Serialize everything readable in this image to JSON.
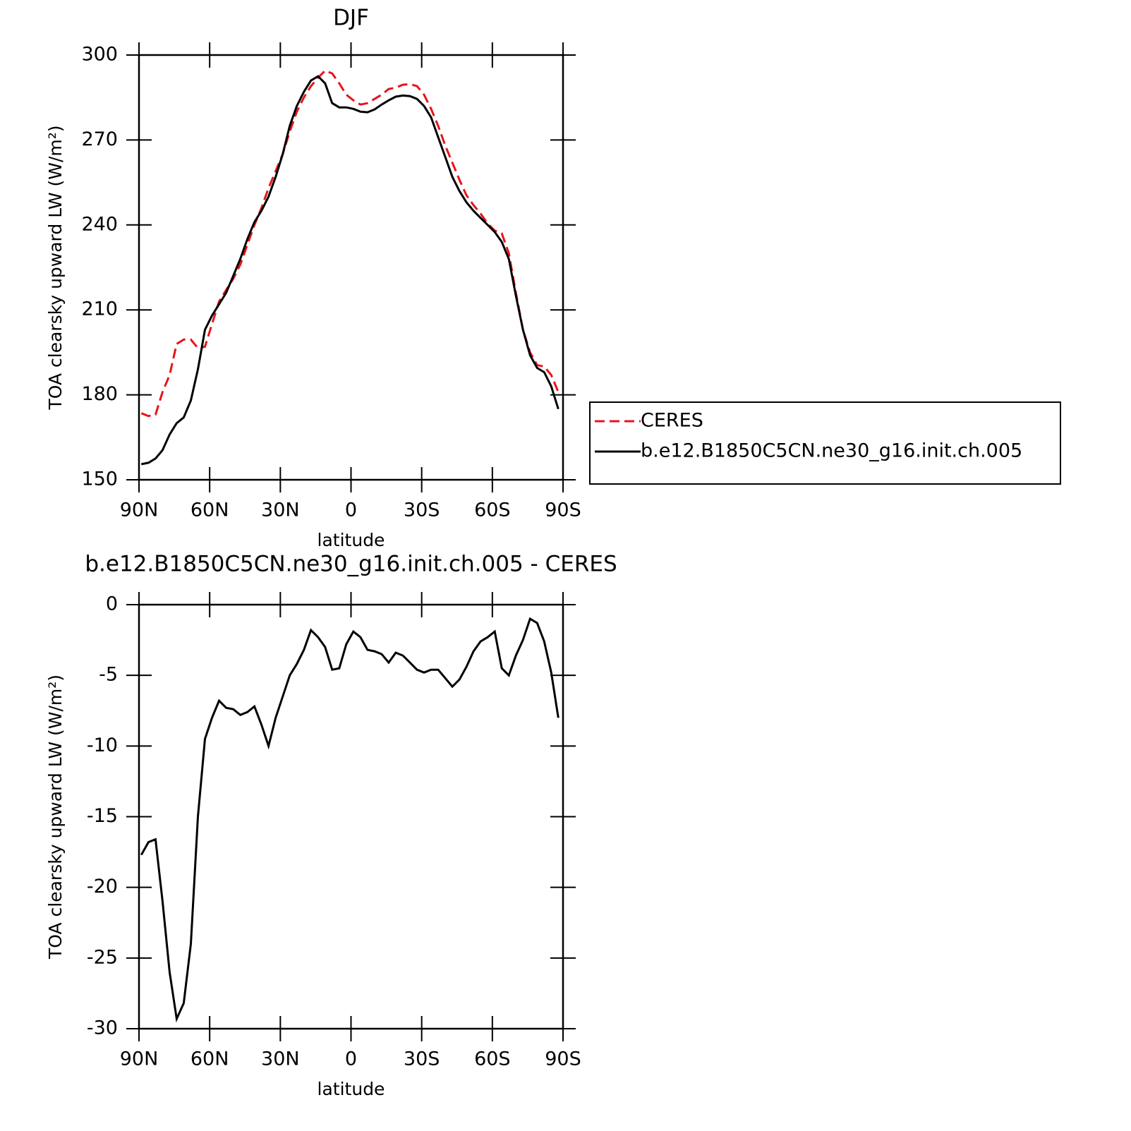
{
  "chart_data": [
    {
      "type": "line",
      "title": "DJF",
      "xlabel": "latitude",
      "ylabel": "TOA clearsky upward LW (W/m²)",
      "x": [
        89,
        86,
        83,
        80,
        77,
        74,
        71,
        68,
        65,
        62,
        59,
        56,
        53,
        50,
        47,
        44,
        41,
        38,
        35,
        32,
        29,
        26,
        23,
        20,
        17,
        14,
        11,
        8,
        5,
        2,
        -1,
        -4,
        -7,
        -10,
        -13,
        -16,
        -19,
        -22,
        -25,
        -28,
        -31,
        -34,
        -37,
        -40,
        -43,
        -46,
        -49,
        -52,
        -55,
        -58,
        -61,
        -64,
        -67,
        -70,
        -73,
        -76,
        -79,
        -82,
        -85,
        -88
      ],
      "series": [
        {
          "name": "CERES",
          "color": "#e8141c",
          "line_style": "dashed",
          "values": [
            173.5,
            172.5,
            173,
            181,
            187,
            198,
            199.5,
            199.5,
            196.5,
            197,
            205,
            213,
            217,
            221,
            226,
            233,
            240,
            246,
            253,
            259,
            265,
            273,
            280,
            285,
            289,
            292,
            294.5,
            293.5,
            290,
            286,
            284,
            282.5,
            283,
            284.5,
            286,
            288,
            288.5,
            289.5,
            289.7,
            289,
            286,
            281,
            275,
            268,
            262,
            256,
            250.5,
            247,
            244,
            240.5,
            238,
            237,
            230,
            216,
            203,
            195,
            190.5,
            190,
            187,
            181
          ]
        },
        {
          "name": "b.e12.B1850C5CN.ne30_g16.init.ch.005",
          "color": "#000000",
          "line_style": "solid",
          "values": [
            155.5,
            156,
            157.5,
            160.5,
            166,
            170,
            172,
            178,
            189,
            203,
            208,
            212,
            216,
            222,
            228,
            235,
            241,
            245,
            250,
            257,
            265,
            275,
            282,
            287,
            291,
            292.5,
            290,
            283,
            281.5,
            281.5,
            281,
            280,
            279.8,
            280.8,
            282.5,
            284,
            285.3,
            285.7,
            285.5,
            284.5,
            282,
            278,
            271,
            264,
            257,
            252,
            248,
            245,
            242.5,
            240,
            237.5,
            234,
            228,
            215,
            203,
            194,
            189.5,
            188,
            183,
            175
          ]
        }
      ],
      "xlim": [
        90,
        -90
      ],
      "xticks": [
        {
          "value": 90,
          "label": "90N"
        },
        {
          "value": 60,
          "label": "60N"
        },
        {
          "value": 30,
          "label": "30N"
        },
        0,
        {
          "value": -30,
          "label": "30S"
        },
        {
          "value": -60,
          "label": "60S"
        },
        {
          "value": -90,
          "label": "90S"
        }
      ],
      "ylim": [
        150,
        300
      ],
      "yticks": [
        150,
        180,
        210,
        240,
        270,
        300
      ],
      "legend": "right"
    },
    {
      "type": "line",
      "title": "b.e12.B1850C5CN.ne30_g16.init.ch.005 - CERES",
      "xlabel": "latitude",
      "ylabel": "TOA clearsky upward LW (W/m²)",
      "x": [
        89,
        86,
        83,
        80,
        77,
        74,
        71,
        68,
        65,
        62,
        59,
        56,
        53,
        50,
        47,
        44,
        41,
        38,
        35,
        32,
        29,
        26,
        23,
        20,
        17,
        14,
        11,
        8,
        5,
        2,
        -1,
        -4,
        -7,
        -10,
        -13,
        -16,
        -19,
        -22,
        -25,
        -28,
        -31,
        -34,
        -37,
        -40,
        -43,
        -46,
        -49,
        -52,
        -55,
        -58,
        -61,
        -64,
        -67,
        -70,
        -73,
        -76,
        -79,
        -82,
        -85,
        -88
      ],
      "color": "#000000",
      "values": [
        -17.7,
        -16.8,
        -16.6,
        -21,
        -26,
        -29.3,
        -28.2,
        -24,
        -15,
        -9.5,
        -8,
        -6.8,
        -7.3,
        -7.4,
        -7.8,
        -7.6,
        -7.2,
        -8.5,
        -10,
        -8,
        -6.5,
        -5,
        -4.2,
        -3.2,
        -1.8,
        -2.3,
        -3,
        -4.6,
        -4.5,
        -2.8,
        -1.9,
        -2.3,
        -3.2,
        -3.3,
        -3.5,
        -4.1,
        -3.4,
        -3.6,
        -4.1,
        -4.6,
        -4.8,
        -4.6,
        -4.6,
        -5.2,
        -5.8,
        -5.3,
        -4.4,
        -3.3,
        -2.6,
        -2.3,
        -1.9,
        -4.5,
        -5,
        -3.6,
        -2.5,
        -1,
        -1.3,
        -2.6,
        -4.8,
        -8
      ],
      "xlim": [
        90,
        -90
      ],
      "xticks": [
        {
          "value": 90,
          "label": "90N"
        },
        {
          "value": 60,
          "label": "60N"
        },
        {
          "value": 30,
          "label": "30N"
        },
        0,
        {
          "value": -30,
          "label": "30S"
        },
        {
          "value": -60,
          "label": "60S"
        },
        {
          "value": -90,
          "label": "90S"
        }
      ],
      "ylim": [
        -30,
        0
      ],
      "yticks": [
        -30,
        -25,
        -20,
        -15,
        -10,
        -5,
        0
      ]
    }
  ]
}
